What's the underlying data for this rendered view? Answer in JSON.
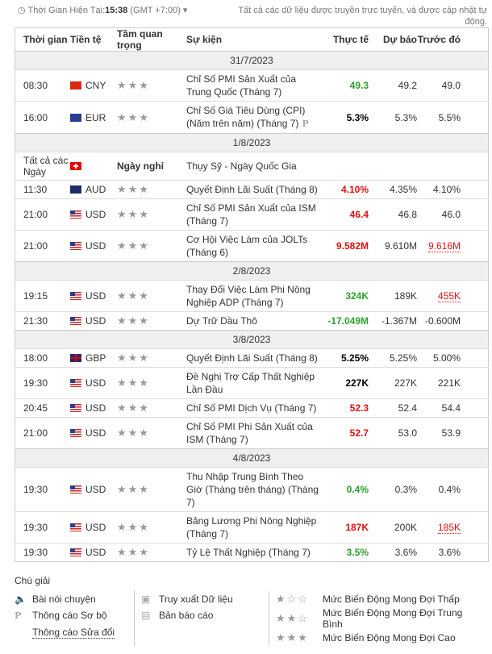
{
  "header": {
    "time_label": "Thời Gian Hiện Tại:",
    "time": "15:38",
    "tz": "(GMT +7:00)",
    "note": "Tất cả các dữ liệu được truyền trực tuyến, và được cập nhật tự động."
  },
  "columns": [
    "Thời gian",
    "Tiền tệ",
    "Tầm quan trọng",
    "Sự kiện",
    "Thực tế",
    "Dự báo",
    "Trước đó"
  ],
  "rows": [
    {
      "date": "31/7/2023"
    },
    {
      "time": "08:30",
      "cur": "CNY",
      "flag": "cn",
      "event": "Chỉ Số PMI Sản Xuất của Trung Quốc (Tháng 7)",
      "actual": "49.3",
      "ac": "g",
      "forecast": "49.2",
      "previous": "49.0"
    },
    {
      "time": "16:00",
      "cur": "EUR",
      "flag": "eu",
      "event": "Chỉ Số Giá Tiêu Dùng (CPI) (Năm trên năm) (Tháng 7)",
      "prelim": "P",
      "actual": "5.3%",
      "ac": "k",
      "forecast": "5.3%",
      "previous": "5.5%"
    },
    {
      "date": "1/8/2023"
    },
    {
      "time": "Tất cả các Ngày",
      "cur": "",
      "flag": "ch",
      "holiday": "Ngày nghỉ",
      "event": "Thụy Sỹ - Ngày Quốc Gia"
    },
    {
      "time": "11:30",
      "cur": "AUD",
      "flag": "au",
      "event": "Quyết Định Lãi Suất (Tháng 8)",
      "actual": "4.10%",
      "ac": "r",
      "forecast": "4.35%",
      "previous": "4.10%"
    },
    {
      "time": "21:00",
      "cur": "USD",
      "flag": "us",
      "event": "Chỉ Số PMI Sản Xuất của ISM (Tháng 7)",
      "actual": "46.4",
      "ac": "r",
      "forecast": "46.8",
      "previous": "46.0"
    },
    {
      "time": "21:00",
      "cur": "USD",
      "flag": "us",
      "event": "Cơ Hội Việc Làm của JOLTs (Tháng 6)",
      "actual": "9.582M",
      "ac": "r",
      "forecast": "9.610M",
      "previous": "9.616M",
      "revised": true
    },
    {
      "date": "2/8/2023"
    },
    {
      "time": "19:15",
      "cur": "USD",
      "flag": "us",
      "event": "Thay Đổi Việc Làm Phi Nông Nghiệp ADP (Tháng 7)",
      "actual": "324K",
      "ac": "g",
      "forecast": "189K",
      "previous": "455K",
      "revised": true
    },
    {
      "time": "21:30",
      "cur": "USD",
      "flag": "us",
      "event": "Dự Trữ Dầu Thô",
      "actual": "-17.049M",
      "ac": "g",
      "forecast": "-1.367M",
      "previous": "-0.600M"
    },
    {
      "date": "3/8/2023"
    },
    {
      "time": "18:00",
      "cur": "GBP",
      "flag": "gb",
      "event": "Quyết Định Lãi Suất (Tháng 8)",
      "actual": "5.25%",
      "ac": "k",
      "forecast": "5.25%",
      "previous": "5.00%"
    },
    {
      "time": "19:30",
      "cur": "USD",
      "flag": "us",
      "event": "Đề Nghị Trợ Cấp Thất Nghiệp Lần Đầu",
      "actual": "227K",
      "ac": "k",
      "forecast": "227K",
      "previous": "221K"
    },
    {
      "time": "20:45",
      "cur": "USD",
      "flag": "us",
      "event": "Chỉ Số PMI Dịch Vụ (Tháng 7)",
      "actual": "52.3",
      "ac": "r",
      "forecast": "52.4",
      "previous": "54.4"
    },
    {
      "time": "21:00",
      "cur": "USD",
      "flag": "us",
      "event": "Chỉ Số PMI Phi Sản Xuất của ISM (Tháng 7)",
      "actual": "52.7",
      "ac": "r",
      "forecast": "53.0",
      "previous": "53.9"
    },
    {
      "date": "4/8/2023"
    },
    {
      "time": "19:30",
      "cur": "USD",
      "flag": "us",
      "event": "Thu Nhập Trung Bình Theo Giờ (Tháng trên tháng) (Tháng 7)",
      "actual": "0.4%",
      "ac": "g",
      "forecast": "0.3%",
      "previous": "0.4%"
    },
    {
      "time": "19:30",
      "cur": "USD",
      "flag": "us",
      "event": "Bảng Lương Phi Nông Nghiệp (Tháng 7)",
      "actual": "187K",
      "ac": "r",
      "forecast": "200K",
      "previous": "185K",
      "revised": true
    },
    {
      "time": "19:30",
      "cur": "USD",
      "flag": "us",
      "event": "Tỷ Lệ Thất Nghiệp (Tháng 7)",
      "actual": "3.5%",
      "ac": "g",
      "forecast": "3.6%",
      "previous": "3.6%"
    }
  ],
  "legend": {
    "title": "Chú giải",
    "speech": "Bài nói chuyện",
    "prelim": "Thông cáo Sơ bộ",
    "revised": "Thông cáo Sửa đổi",
    "retrieval": "Truy xuất Dữ liệu",
    "report": "Bản báo cáo",
    "low": "Mức Biến Động Mong Đợi Thấp",
    "medium": "Mức Biến Động Mong Đợi Trung Bình",
    "high": "Mức Biến Động Mong Đợi Cao"
  }
}
